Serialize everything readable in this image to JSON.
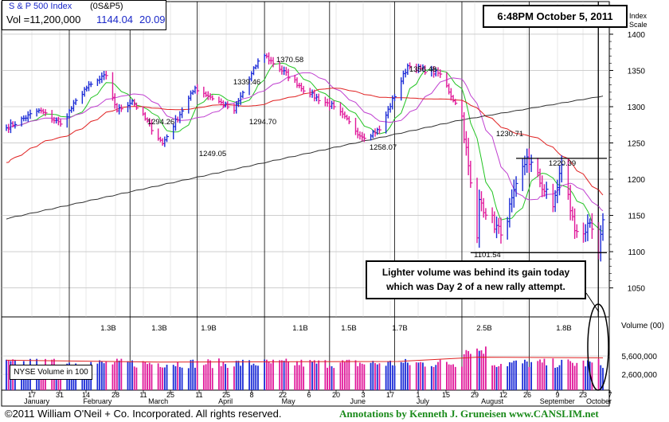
{
  "header": {
    "index_name": "S & P 500 Index",
    "symbol": "(0S&P5)",
    "vol_label": "Vol =11,200,000",
    "price": "1144.04",
    "change": "20.09"
  },
  "timestamp": "6:48PM October 5, 2011",
  "annotation": {
    "line1": "Lighter volume was behind its gain today",
    "line2": "which was Day 2 of a new rally attempt."
  },
  "axis": {
    "price_title_1": "Index",
    "price_title_2": "Scale",
    "volume_title": "Volume (00)",
    "nyse_label": "NYSE Volume in 100"
  },
  "footer": {
    "copyright": "©2011 William O'Neil + Co. Incorporated. All rights reserved.",
    "credits": "Annotations by Kenneth J. Gruneisen  www.CANSLIM.net"
  },
  "colors": {
    "up": "#1a2ad6",
    "down": "#e0189a",
    "ma10": "#22c422",
    "ma21": "#c040d0",
    "ma50": "#e02020",
    "ma200": "#303030",
    "text_blue": "#1a28c8",
    "credits_green": "#1a8a1a"
  },
  "chart_data": [
    {
      "type": "ohlc",
      "title": "S & P 500 Index",
      "ylabel": "Index Scale",
      "ylim": [
        1010,
        1445
      ],
      "yticks": [
        1050,
        1100,
        1150,
        1200,
        1250,
        1300,
        1350,
        1400
      ],
      "x_day_labels": [
        "17",
        "31",
        "14",
        "28",
        "11",
        "25",
        "11",
        "25",
        "8",
        "22",
        "6",
        "20",
        "3",
        "17",
        "1",
        "15",
        "29",
        "12",
        "26",
        "9",
        "23",
        "7"
      ],
      "x_month_labels": [
        "January",
        "February",
        "March",
        "April",
        "May",
        "June",
        "July",
        "August",
        "September",
        "October"
      ],
      "series_points": [
        {
          "date": "2011-01-03",
          "close": 1271
        },
        {
          "date": "2011-01-18",
          "close": 1295
        },
        {
          "date": "2011-01-28",
          "close": 1276
        },
        {
          "date": "2011-02-08",
          "close": 1324
        },
        {
          "date": "2011-02-18",
          "close": 1343
        },
        {
          "date": "2011-02-23",
          "close": 1294.26
        },
        {
          "date": "2011-03-02",
          "close": 1308
        },
        {
          "date": "2011-03-16",
          "close": 1249.05
        },
        {
          "date": "2011-03-31",
          "close": 1326
        },
        {
          "date": "2011-04-18",
          "close": 1294.7
        },
        {
          "date": "2011-04-29",
          "close": 1363
        },
        {
          "date": "2011-05-02",
          "close": 1370.58
        },
        {
          "date": "2011-05-23",
          "close": 1317
        },
        {
          "date": "2011-06-03",
          "close": 1300
        },
        {
          "date": "2011-06-16",
          "close": 1258.07
        },
        {
          "date": "2011-06-24",
          "close": 1268
        },
        {
          "date": "2011-07-07",
          "close": 1356.48
        },
        {
          "date": "2011-07-22",
          "close": 1345
        },
        {
          "date": "2011-08-01",
          "close": 1287
        },
        {
          "date": "2011-08-08",
          "close": 1119
        },
        {
          "date": "2011-08-09",
          "close": 1172
        },
        {
          "date": "2011-08-19",
          "close": 1123
        },
        {
          "date": "2011-08-31",
          "close": 1230.71
        },
        {
          "date": "2011-09-12",
          "close": 1162
        },
        {
          "date": "2011-09-16",
          "close": 1220.39
        },
        {
          "date": "2011-09-22",
          "close": 1129
        },
        {
          "date": "2011-09-30",
          "close": 1131
        },
        {
          "date": "2011-10-03",
          "close": 1099
        },
        {
          "date": "2011-10-04",
          "close": 1123.95
        },
        {
          "date": "2011-10-05",
          "close": 1144.04
        }
      ],
      "annotations": [
        {
          "label": "1294.26"
        },
        {
          "label": "1249.05"
        },
        {
          "label": "1339.46"
        },
        {
          "label": "1294.70"
        },
        {
          "label": "1370.58"
        },
        {
          "label": "1258.07"
        },
        {
          "label": "1356.48"
        },
        {
          "label": "1101.54"
        },
        {
          "label": "1230.71"
        },
        {
          "label": "1220.39"
        }
      ],
      "support_level": 1101.54,
      "resistance_level": 1230.71
    },
    {
      "type": "bar",
      "title": "Volume (00)",
      "ylabel": "Volume (00)",
      "ylim": [
        0,
        12000000
      ],
      "yticks": [
        2600000,
        5600000
      ],
      "yticks_labels": [
        "2,600,000",
        "5,600,000"
      ],
      "bar_labels": [
        "1.3B",
        "1.3B",
        "1.9B",
        "1.1B",
        "1.5B",
        "1.7B",
        "2.5B",
        "1.8B"
      ]
    }
  ]
}
